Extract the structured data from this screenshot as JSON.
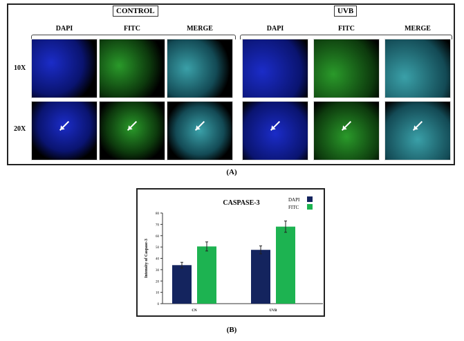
{
  "panel_a": {
    "groups": [
      "CONTROL",
      "UVB"
    ],
    "columns": [
      "DAPI",
      "FITC",
      "MERGE",
      "DAPI",
      "FITC",
      "MERGE"
    ],
    "rows": [
      "10X",
      "20X"
    ],
    "caption": "(A)"
  },
  "panel_b": {
    "caption": "(B)"
  },
  "chart_data": {
    "type": "bar",
    "title": "CASPASE-3",
    "ylabel": "Intensity of Caspase-3",
    "xlabel": "",
    "categories": [
      "CN",
      "UVB"
    ],
    "ylim": [
      0,
      80
    ],
    "yticks": [
      "0",
      "10",
      "20",
      "30",
      "40",
      "50",
      "60",
      "70",
      "80"
    ],
    "legend_position": "top-right",
    "series": [
      {
        "name": "DAPI",
        "color": "#14245e",
        "values": [
          34,
          47.5
        ],
        "errors": [
          2.5,
          3.5
        ]
      },
      {
        "name": "FITC",
        "color": "#1db351",
        "values": [
          50.5,
          68
        ],
        "errors": [
          4,
          5
        ]
      }
    ]
  }
}
